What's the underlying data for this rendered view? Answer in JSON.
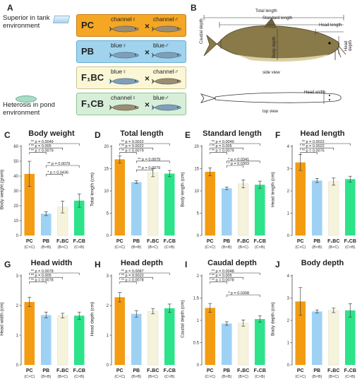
{
  "panel_letters": {
    "a": "A",
    "b": "B"
  },
  "environment": {
    "tank": "Superior in tank environment",
    "pond": "Heterosis in pond environment"
  },
  "crosses": [
    {
      "code": "PC",
      "female": "channel♀",
      "male": "channel♂",
      "color": "#f5a623",
      "border": "#c7801a",
      "female_fish": "channel",
      "male_fish": "channel"
    },
    {
      "code": "PB",
      "female": "blue♀",
      "male": "blue♂",
      "color": "#9fd3ee",
      "border": "#6aaed0",
      "female_fish": "blue",
      "male_fish": "blue"
    },
    {
      "code": "F₁BC",
      "female": "blue♀",
      "male": "channel♂",
      "color": "#fbf7d6",
      "border": "#c9c28a",
      "female_fish": "blue",
      "male_fish": "channel"
    },
    {
      "code": "F₁CB",
      "female": "channel♀",
      "male": "blue♂",
      "color": "#d7efd8",
      "border": "#8fc493",
      "female_fish": "channel",
      "male_fish": "blue"
    }
  ],
  "cross_symbol": "×",
  "diagram": {
    "total_length": "Total length",
    "standard_length": "Standard length",
    "head_length": "Head length",
    "caudal_depth": "Caudal depth",
    "body_depth": "Body depth",
    "head_depth": "Head depth",
    "side_view": "side view",
    "head_width": "Head width",
    "top_view": "top view"
  },
  "group_colors": [
    "#f39c12",
    "#9ed2f5",
    "#f6f3dc",
    "#2de38a"
  ],
  "chart_data": [
    {
      "letter": "C",
      "title": "Body weight",
      "ylabel": "Body weight (gram)",
      "ylim": [
        0,
        60
      ],
      "yticks": [
        0,
        10,
        20,
        30,
        40,
        50,
        60
      ],
      "categories": [
        "PC",
        "PB",
        "F₁BC",
        "F₁CB"
      ],
      "subcategories": [
        "(C×C)",
        "(B×B)",
        "(B×C)",
        "(C×B)"
      ],
      "values": [
        41.5,
        14.7,
        19.2,
        23.5
      ],
      "errors": [
        8.5,
        1.3,
        4.0,
        4.5
      ],
      "annotations": [
        {
          "from": 0,
          "to": 3,
          "label": "** p = 0.0049",
          "level": 0
        },
        {
          "from": 0,
          "to": 2,
          "label": "** p = 0.005",
          "level": 1
        },
        {
          "from": 0,
          "to": 1,
          "label": "** p = 0.0079",
          "level": 2
        },
        {
          "from": 1,
          "to": 3,
          "label": "** p = 0.0079",
          "level": 5
        },
        {
          "from": 1,
          "to": 2,
          "label": "* p = 0.0436",
          "level": 7
        }
      ]
    },
    {
      "letter": "D",
      "title": "Total length",
      "ylabel": "Total length (cm)",
      "ylim": [
        0,
        20
      ],
      "yticks": [
        0,
        5,
        10,
        15,
        20
      ],
      "categories": [
        "PC",
        "PB",
        "F₁BC",
        "F₁CB"
      ],
      "subcategories": [
        "(C×C)",
        "(B×B)",
        "(B×C)",
        "(C×B)"
      ],
      "values": [
        17.1,
        12.0,
        14.1,
        13.9
      ],
      "errors": [
        0.8,
        0.3,
        0.9,
        0.7
      ],
      "annotations": [
        {
          "from": 0,
          "to": 3,
          "label": "** p = 0.0022",
          "level": 0
        },
        {
          "from": 0,
          "to": 2,
          "label": "** p = 0.0022",
          "level": 1
        },
        {
          "from": 0,
          "to": 1,
          "label": "** p = 0.0079",
          "level": 2
        },
        {
          "from": 1,
          "to": 3,
          "label": "** p = 0.0079",
          "level": 4
        },
        {
          "from": 1,
          "to": 2,
          "label": "** p = 0.0079",
          "level": 6
        }
      ]
    },
    {
      "letter": "E",
      "title": "Standard length",
      "ylabel": "Body length (cm)",
      "ylim": [
        0,
        20
      ],
      "yticks": [
        0,
        5,
        10,
        15,
        20
      ],
      "categories": [
        "PC",
        "PB",
        "F₁BC",
        "F₁CB"
      ],
      "subcategories": [
        "(C×C)",
        "(B×B)",
        "(B×C)",
        "(C×B)"
      ],
      "values": [
        14.3,
        10.6,
        11.6,
        11.4
      ],
      "errors": [
        0.9,
        0.3,
        0.9,
        0.8
      ],
      "annotations": [
        {
          "from": 0,
          "to": 3,
          "label": "** p = 0.0049",
          "level": 0
        },
        {
          "from": 0,
          "to": 2,
          "label": "** p = 0.005",
          "level": 1
        },
        {
          "from": 0,
          "to": 1,
          "label": "** p = 0.0079",
          "level": 2
        },
        {
          "from": 1,
          "to": 3,
          "label": "* p = 0.0341",
          "level": 4
        },
        {
          "from": 1,
          "to": 2,
          "label": "* p = 0.0303",
          "level": 5
        }
      ]
    },
    {
      "letter": "F",
      "title": "Head length",
      "ylabel": "Head length (cm)",
      "ylim": [
        0,
        4
      ],
      "yticks": [
        0,
        1,
        2,
        3,
        4
      ],
      "categories": [
        "PC",
        "PB",
        "F₁BC",
        "F₁CB"
      ],
      "subcategories": [
        "(C×C)",
        "(B×B)",
        "(B×C)",
        "(C×B)"
      ],
      "values": [
        3.28,
        2.47,
        2.42,
        2.53
      ],
      "errors": [
        0.36,
        0.09,
        0.16,
        0.13
      ],
      "annotations": [
        {
          "from": 0,
          "to": 3,
          "label": "** p = 0.0022",
          "level": 0
        },
        {
          "from": 0,
          "to": 2,
          "label": "** p = 0.0022",
          "level": 1
        },
        {
          "from": 0,
          "to": 1,
          "label": "** p = 0.0075",
          "level": 2
        }
      ]
    },
    {
      "letter": "G",
      "title": "Head width",
      "ylabel": "Head width (cm)",
      "ylim": [
        0,
        3
      ],
      "yticks": [
        0,
        1,
        2,
        3
      ],
      "categories": [
        "PC",
        "PB",
        "F₁BC",
        "F₁CB"
      ],
      "subcategories": [
        "(C×C)",
        "(B×B)",
        "(B×C)",
        "(C×B)"
      ],
      "values": [
        2.12,
        1.68,
        1.66,
        1.66
      ],
      "errors": [
        0.16,
        0.1,
        0.08,
        0.12
      ],
      "annotations": [
        {
          "from": 0,
          "to": 3,
          "label": "** p = 0.0078",
          "level": 0
        },
        {
          "from": 0,
          "to": 2,
          "label": "** p = 0.005",
          "level": 1
        },
        {
          "from": 0,
          "to": 1,
          "label": "** p = 0.0078",
          "level": 2
        }
      ]
    },
    {
      "letter": "H",
      "title": "Head depth",
      "ylabel": "Head depth (cm)",
      "ylim": [
        0,
        3
      ],
      "yticks": [
        0,
        1,
        2,
        3
      ],
      "categories": [
        "PC",
        "PB",
        "F₁BC",
        "F₁CB"
      ],
      "subcategories": [
        "(C×C)",
        "(B×B)",
        "(B×C)",
        "(C×B)"
      ],
      "values": [
        2.28,
        1.72,
        1.81,
        1.91
      ],
      "errors": [
        0.16,
        0.11,
        0.09,
        0.14
      ],
      "annotations": [
        {
          "from": 0,
          "to": 3,
          "label": "** p = 0.0087",
          "level": 0
        },
        {
          "from": 0,
          "to": 2,
          "label": "** p = 0.0022",
          "level": 1
        },
        {
          "from": 0,
          "to": 1,
          "label": "** p = 0.0078",
          "level": 2
        }
      ]
    },
    {
      "letter": "I",
      "title": "Caudal depth",
      "ylabel": "Caudal depth (cm)",
      "ylim": [
        0,
        2
      ],
      "yticks": [
        0,
        0.5,
        1,
        1.5,
        2
      ],
      "categories": [
        "PC",
        "PB",
        "F₁BC",
        "F₁CB"
      ],
      "subcategories": [
        "(C×C)",
        "(B×B)",
        "(B×C)",
        "(C×B)"
      ],
      "values": [
        1.28,
        0.93,
        0.94,
        1.03
      ],
      "errors": [
        0.1,
        0.04,
        0.07,
        0.07
      ],
      "annotations": [
        {
          "from": 0,
          "to": 3,
          "label": "** p = 0.0048",
          "level": 0
        },
        {
          "from": 0,
          "to": 2,
          "label": "** p = 0.005",
          "level": 1
        },
        {
          "from": 0,
          "to": 1,
          "label": "** p = 0.0078",
          "level": 2
        },
        {
          "from": 1,
          "to": 3,
          "label": "* p = 0.0308",
          "level": 5
        }
      ]
    },
    {
      "letter": "J",
      "title": "Body depth",
      "ylabel": "Body depth (cm)",
      "ylim": [
        0,
        4
      ],
      "yticks": [
        0,
        1,
        2,
        3,
        4
      ],
      "categories": [
        "PC",
        "PB",
        "F₁BC",
        "F₁CB"
      ],
      "subcategories": [
        "(C×C)",
        "(B×B)",
        "(B×C)",
        "(C×B)"
      ],
      "values": [
        2.85,
        2.4,
        2.45,
        2.45
      ],
      "errors": [
        0.62,
        0.07,
        0.1,
        0.3
      ],
      "annotations": []
    }
  ]
}
